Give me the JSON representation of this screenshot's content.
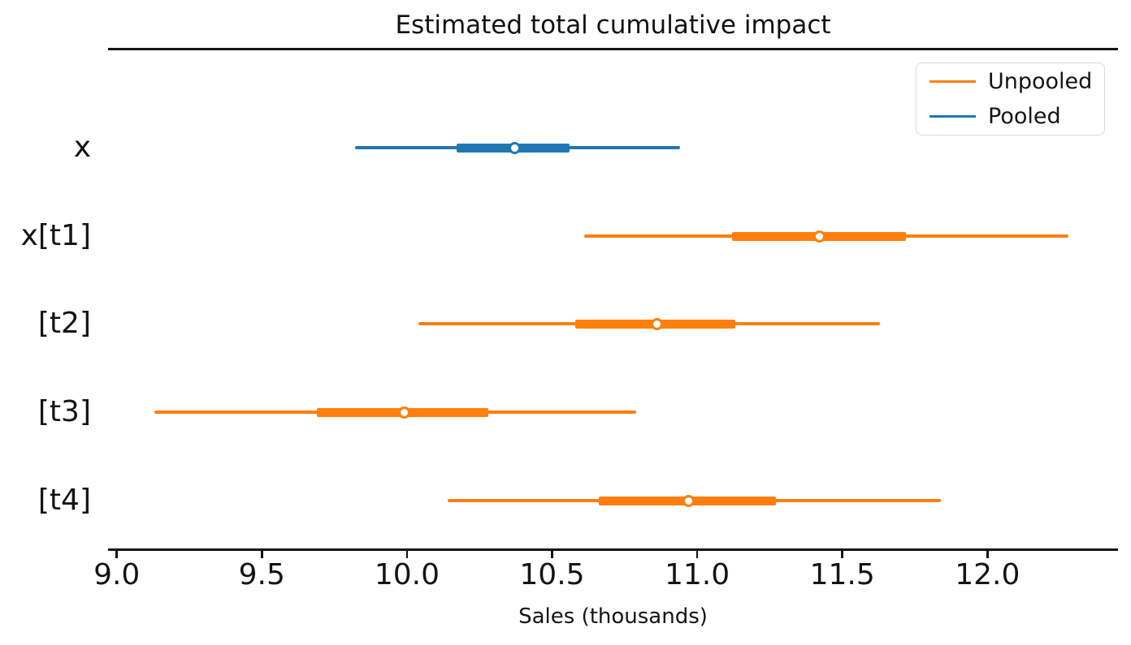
{
  "figure": {
    "title": "Estimated total cumulative impact",
    "xlabel": "Sales (thousands)"
  },
  "legend": {
    "items": [
      {
        "label": "Unpooled",
        "color": "#ff7f0e"
      },
      {
        "label": "Pooled",
        "color": "#1f77b4"
      }
    ]
  },
  "chart_data": {
    "type": "forest",
    "title": "Estimated total cumulative impact",
    "xlabel": "Sales (thousands)",
    "ylabel": "",
    "xlim": [
      8.97,
      12.45
    ],
    "xticks": [
      9.0,
      9.5,
      10.0,
      10.5,
      11.0,
      11.5,
      12.0
    ],
    "xtick_labels": [
      "9.0",
      "9.5",
      "10.0",
      "10.5",
      "11.0",
      "11.5",
      "12.0"
    ],
    "grid": false,
    "legend_position": "upper right",
    "series_colors": {
      "Unpooled": "#ff7f0e",
      "Pooled": "#1f77b4"
    },
    "rows": [
      {
        "label": "x",
        "series": "Pooled",
        "color": "#1f77b4",
        "whisker": [
          9.82,
          10.94
        ],
        "band": [
          10.17,
          10.56
        ],
        "point": 10.37
      },
      {
        "label": "x[t1]",
        "series": "Unpooled",
        "color": "#ff7f0e",
        "whisker": [
          10.61,
          12.28
        ],
        "band": [
          11.12,
          11.72
        ],
        "point": 11.42
      },
      {
        "label": "[t2]",
        "series": "Unpooled",
        "color": "#ff7f0e",
        "whisker": [
          10.04,
          11.63
        ],
        "band": [
          10.58,
          11.13
        ],
        "point": 10.86
      },
      {
        "label": "[t3]",
        "series": "Unpooled",
        "color": "#ff7f0e",
        "whisker": [
          9.13,
          10.79
        ],
        "band": [
          9.69,
          10.28
        ],
        "point": 9.99
      },
      {
        "label": "[t4]",
        "series": "Unpooled",
        "color": "#ff7f0e",
        "whisker": [
          10.14,
          11.84
        ],
        "band": [
          10.66,
          11.27
        ],
        "point": 10.97
      }
    ]
  }
}
